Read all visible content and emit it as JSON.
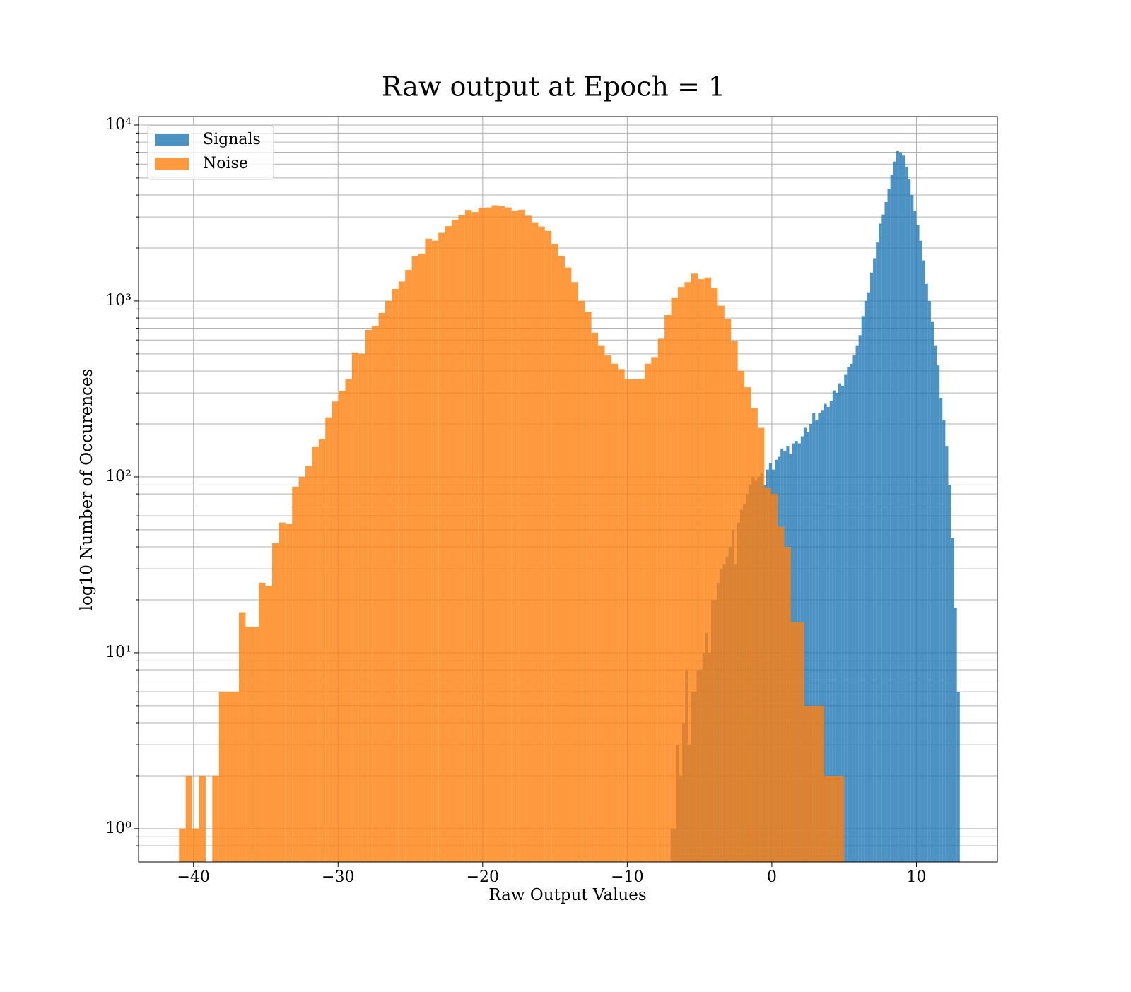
{
  "chart_data": {
    "type": "histogram",
    "title": "Raw output at Epoch = 1",
    "x_label": "Raw Output Values",
    "y_label": "log10 Number of Occurences",
    "log_y": true,
    "grid": true,
    "legend": "upper left",
    "alpha": 0.8,
    "xlim": [
      -43.8,
      15.6
    ],
    "ylim": [
      0.647,
      11170
    ],
    "xticks": [
      {
        "value": -40,
        "label": "−40"
      },
      {
        "value": -30,
        "label": "−30"
      },
      {
        "value": -20,
        "label": "−20"
      },
      {
        "value": -10,
        "label": "−10"
      },
      0,
      10
    ],
    "yticks": [
      {
        "value": 1,
        "label": "10⁰"
      },
      {
        "value": 10,
        "label": "10¹"
      },
      {
        "value": 100,
        "label": "10²"
      },
      {
        "value": 1000,
        "label": "10³"
      },
      {
        "value": 10000,
        "label": "10⁴"
      }
    ],
    "yminor_ticks": [
      0.7,
      0.8,
      0.9,
      2,
      3,
      4,
      5,
      6,
      7,
      8,
      9,
      20,
      30,
      40,
      50,
      60,
      70,
      80,
      90,
      200,
      300,
      400,
      500,
      600,
      700,
      800,
      900,
      2000,
      3000,
      4000,
      5000,
      6000,
      7000,
      8000,
      9000
    ],
    "series": [
      {
        "name": "Signals",
        "color": "#1f77b4",
        "bins": [
          -7,
          -6.8,
          -6.6,
          -6.4,
          -6.2,
          -6,
          -5.8,
          -5.6,
          -5.4,
          -5.2,
          -5,
          -4.8,
          -4.6,
          -4.4,
          -4.2,
          -4,
          -3.8,
          -3.6,
          -3.4,
          -3.2,
          -3,
          -2.8,
          -2.6,
          -2.4,
          -2.2,
          -2,
          -1.8,
          -1.6,
          -1.4,
          -1.2,
          -1,
          -0.8,
          -0.6,
          -0.4,
          -0.2,
          0,
          0.2,
          0.4,
          0.6,
          0.8,
          1,
          1.2,
          1.4,
          1.6,
          1.8,
          2,
          2.2,
          2.4,
          2.6,
          2.8,
          3,
          3.2,
          3.4,
          3.6,
          3.8,
          4,
          4.2,
          4.4,
          4.6,
          4.8,
          5,
          5.2,
          5.4,
          5.6,
          5.8,
          6,
          6.2,
          6.4,
          6.6,
          6.8,
          7,
          7.2,
          7.4,
          7.6,
          7.8,
          8,
          8.2,
          8.4,
          8.6,
          8.8,
          9,
          9.2,
          9.4,
          9.6,
          9.8,
          10,
          10.2,
          10.4,
          10.6,
          10.8,
          11,
          11.2,
          11.4,
          11.6,
          11.8,
          12,
          12.2,
          12.4,
          12.6,
          12.8,
          13
        ],
        "values": [
          1,
          1,
          3,
          2,
          4,
          8,
          3,
          6,
          6,
          8,
          8,
          10,
          13,
          10,
          20,
          20,
          25,
          30,
          32,
          35,
          40,
          50,
          32,
          55,
          65,
          70,
          80,
          90,
          100,
          95,
          100,
          105,
          90,
          110,
          120,
          110,
          125,
          130,
          145,
          140,
          150,
          135,
          155,
          160,
          155,
          170,
          190,
          180,
          200,
          230,
          210,
          230,
          240,
          260,
          250,
          270,
          310,
          300,
          340,
          330,
          380,
          420,
          440,
          490,
          560,
          640,
          820,
          1000,
          1120,
          1450,
          1750,
          2150,
          2750,
          3100,
          3650,
          4350,
          5200,
          6200,
          7100,
          7000,
          6700,
          5800,
          4900,
          4000,
          3250,
          2700,
          2200,
          1700,
          1250,
          1000,
          760,
          560,
          430,
          280,
          210,
          150,
          90,
          45,
          18,
          6
        ]
      },
      {
        "name": "Noise",
        "color": "#ff7f0e",
        "bins": [
          -41,
          -40.54,
          -40.08,
          -39.62,
          -39.16,
          -38.7,
          -38.24,
          -37.78,
          -37.32,
          -36.86,
          -36.4,
          -35.94,
          -35.48,
          -35.02,
          -34.56,
          -34.1,
          -33.64,
          -33.18,
          -32.72,
          -32.26,
          -31.8,
          -31.34,
          -30.88,
          -30.42,
          -29.96,
          -29.5,
          -29.04,
          -28.58,
          -28.12,
          -27.66,
          -27.2,
          -26.74,
          -26.28,
          -25.82,
          -25.36,
          -24.9,
          -24.44,
          -23.98,
          -23.52,
          -23.06,
          -22.6,
          -22.14,
          -21.68,
          -21.22,
          -20.76,
          -20.3,
          -19.84,
          -19.38,
          -18.92,
          -18.46,
          -18,
          -17.54,
          -17.08,
          -16.62,
          -16.16,
          -15.7,
          -15.24,
          -14.78,
          -14.32,
          -13.86,
          -13.4,
          -12.94,
          -12.48,
          -12.02,
          -11.56,
          -11.1,
          -10.64,
          -10.18,
          -9.72,
          -9.26,
          -8.8,
          -8.34,
          -7.88,
          -7.42,
          -6.96,
          -6.5,
          -6.04,
          -5.58,
          -5.12,
          -4.66,
          -4.2,
          -3.74,
          -3.28,
          -2.82,
          -2.36,
          -1.9,
          -1.44,
          -0.98,
          -0.52,
          -0.06,
          0.4,
          0.86,
          1.32,
          1.78,
          2.24,
          2.7,
          3.16,
          3.62,
          4.08,
          4.54,
          5
        ],
        "values": [
          1,
          2,
          1,
          2,
          0,
          2,
          6,
          6,
          6,
          17,
          14,
          14,
          25,
          24,
          42,
          55,
          54,
          88,
          100,
          115,
          149,
          163,
          218,
          268,
          308,
          360,
          510,
          500,
          685,
          720,
          855,
          1000,
          1170,
          1290,
          1500,
          1800,
          1850,
          2260,
          2200,
          2440,
          2660,
          2890,
          3080,
          3290,
          3200,
          3390,
          3400,
          3500,
          3450,
          3400,
          3250,
          3300,
          3050,
          2800,
          2650,
          2500,
          2100,
          1800,
          1550,
          1280,
          1000,
          870,
          660,
          560,
          490,
          440,
          410,
          360,
          360,
          360,
          440,
          480,
          610,
          830,
          1040,
          1200,
          1280,
          1430,
          1330,
          1360,
          1180,
          940,
          790,
          590,
          400,
          323,
          246,
          190,
          87,
          80,
          52,
          40,
          15,
          15,
          5,
          5,
          5,
          2,
          2,
          2
        ]
      }
    ]
  }
}
